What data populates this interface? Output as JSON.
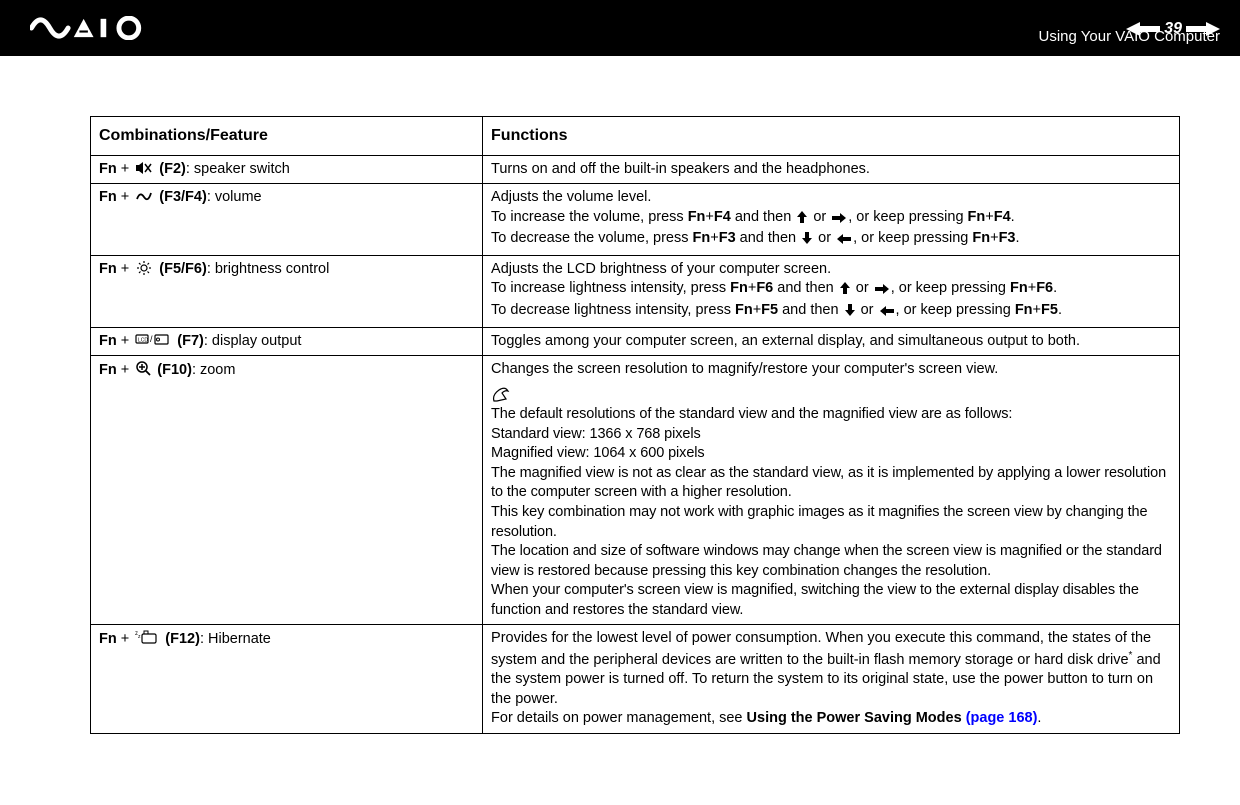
{
  "header": {
    "page_number": "39",
    "page_title": "Using Your VAIO Computer",
    "logo_text": "VAIO"
  },
  "table": {
    "headers": {
      "left": "Combinations/Feature",
      "right": "Functions"
    },
    "rows": [
      {
        "feature_prefix": "Fn",
        "feature_icon": "speaker-mute",
        "feature_key": "(F2)",
        "feature_label": "speaker switch",
        "function_lines": [
          "Turns on and off the built-in speakers and the headphones."
        ]
      },
      {
        "feature_prefix": "Fn",
        "feature_icon": "volume",
        "feature_key": "(F3/F4)",
        "feature_label": "volume",
        "function_lines": [
          "Adjusts the volume level.",
          "To increase the volume, press |bFn|+|bF4| and then |u2191 or |u2192, or keep pressing |bFn|+|bF4|.",
          "To decrease the volume, press |bFn|+|bF3| and then |u2193 or |u2190, or keep pressing |bFn|+|bF3|."
        ]
      },
      {
        "feature_prefix": "Fn",
        "feature_icon": "brightness",
        "feature_key": "(F5/F6)",
        "feature_label": "brightness control",
        "function_lines": [
          "Adjusts the LCD brightness of your computer screen.",
          "To increase lightness intensity, press |bFn|+|bF6| and then |u2191 or |u2192, or keep pressing |bFn|+|bF6|.",
          "To decrease lightness intensity, press |bFn|+|bF5| and then |u2193 or |u2190, or keep pressing |bFn|+|bF5|."
        ]
      },
      {
        "feature_prefix": "Fn",
        "feature_icon": "display-output",
        "feature_key": "(F7)",
        "feature_label": "display output",
        "function_lines": [
          "Toggles among your computer screen, an external display, and simultaneous output to both."
        ]
      },
      {
        "feature_prefix": "Fn",
        "feature_icon": "zoom",
        "feature_key": "(F10)",
        "feature_label": "zoom",
        "function_lines": [
          "Changes the screen resolution to magnify/restore your computer's screen view."
        ],
        "note_lines": [
          "The default resolutions of the standard view and the magnified view are as follows:",
          "Standard view: 1366 x 768 pixels",
          "Magnified view: 1064 x 600 pixels",
          "The magnified view is not as clear as the standard view, as it is implemented by applying a lower resolution to the computer screen with a higher resolution.",
          "This key combination may not work with graphic images as it magnifies the screen view by changing the resolution.",
          "The location and size of software windows may change when the screen view is magnified or the standard view is restored because pressing this key combination changes the resolution.",
          "When your computer's screen view is magnified, switching the view to the external display disables the function and restores the standard view."
        ]
      },
      {
        "feature_prefix": "Fn",
        "feature_icon": "hibernate",
        "feature_key": "(F12)",
        "feature_label": "Hibernate",
        "function_html": "Provides for the lowest level of power consumption. When you execute this command, the states of the system and the peripheral devices are written to the built-in flash memory storage or hard disk drive<sup>*</sup> and the system power is turned off. To return the system to its original state, use the power button to turn on the power.<br>For details on power management, see <b>Using the Power Saving Modes</b> <span class=\"link\">(page 168)</span>."
      }
    ]
  },
  "style": {
    "background": "#ffffff",
    "header_bg": "#000000",
    "header_fg": "#ffffff",
    "text_color": "#000000",
    "link_color": "#0000ff",
    "border_color": "#000000",
    "body_font_size": 14.5,
    "header_font_size_th": 16
  }
}
